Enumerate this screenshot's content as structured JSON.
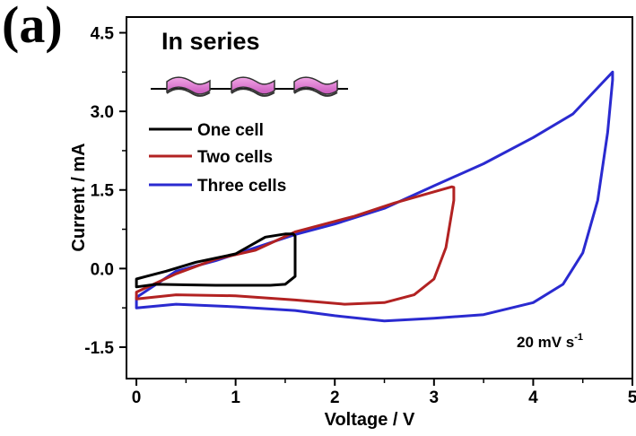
{
  "panel_label": "(a)",
  "chart_data": {
    "type": "line",
    "title": "In series",
    "xlabel": "Voltage / V",
    "ylabel": "Current / mA",
    "xlim": [
      -0.1,
      5.0
    ],
    "ylim": [
      -2.1,
      4.8
    ],
    "x_ticks": [
      0,
      1,
      2,
      3,
      4,
      5
    ],
    "x_tick_labels": [
      "0",
      "1",
      "2",
      "3",
      "4",
      "5"
    ],
    "y_ticks": [
      -1.5,
      0.0,
      1.5,
      3.0,
      4.5
    ],
    "y_tick_labels": [
      "-1.5",
      "0.0",
      "1.5",
      "3.0",
      "4.5"
    ],
    "grid": false,
    "legend_position": "top-left",
    "annotation": {
      "main": "20 mV s",
      "superscript": "-1"
    },
    "inset": "three supercapacitor cells connected in series",
    "series": [
      {
        "name": "One cell",
        "color": "#000000",
        "x": [
          0.0,
          0.2,
          0.5,
          0.8,
          1.0,
          1.2,
          1.35,
          1.5,
          1.6,
          1.6,
          1.58,
          1.5,
          1.3,
          1.0,
          0.6,
          0.3,
          0.1,
          0.0,
          0.0
        ],
        "y": [
          -0.35,
          -0.3,
          -0.31,
          -0.32,
          -0.32,
          -0.32,
          -0.32,
          -0.3,
          -0.15,
          0.62,
          0.66,
          0.66,
          0.6,
          0.28,
          0.12,
          -0.05,
          -0.15,
          -0.2,
          -0.35
        ]
      },
      {
        "name": "Two cells",
        "color": "#b22222",
        "x": [
          0.0,
          0.4,
          1.0,
          1.6,
          2.1,
          2.5,
          2.8,
          3.0,
          3.12,
          3.2,
          3.2,
          3.18,
          2.6,
          2.2,
          1.6,
          1.2,
          0.8,
          0.4,
          0.0,
          0.0
        ],
        "y": [
          -0.58,
          -0.5,
          -0.52,
          -0.6,
          -0.68,
          -0.65,
          -0.5,
          -0.2,
          0.4,
          1.3,
          1.55,
          1.56,
          1.25,
          1.0,
          0.7,
          0.35,
          0.18,
          -0.1,
          -0.45,
          -0.58
        ]
      },
      {
        "name": "Three cells",
        "color": "#2a2ad0",
        "x": [
          0.0,
          0.4,
          1.0,
          1.6,
          2.0,
          2.5,
          3.0,
          3.5,
          4.0,
          4.3,
          4.5,
          4.65,
          4.75,
          4.8,
          4.8,
          4.7,
          4.4,
          4.0,
          3.5,
          3.0,
          2.5,
          2.0,
          1.6,
          1.2,
          0.8,
          0.4,
          0.0,
          0.0
        ],
        "y": [
          -0.75,
          -0.68,
          -0.73,
          -0.8,
          -0.9,
          -1.0,
          -0.95,
          -0.88,
          -0.65,
          -0.3,
          0.3,
          1.3,
          2.6,
          3.6,
          3.75,
          3.55,
          2.95,
          2.5,
          2.0,
          1.58,
          1.15,
          0.85,
          0.65,
          0.4,
          0.15,
          -0.05,
          -0.55,
          -0.75
        ]
      }
    ]
  }
}
